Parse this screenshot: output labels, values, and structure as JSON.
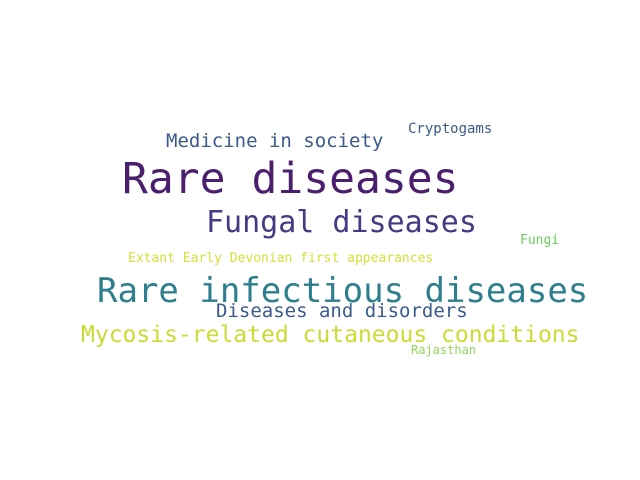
{
  "words": [
    {
      "text": "Cryptogams",
      "color": "#3b5a8c"
    },
    {
      "text": "Medicine in society",
      "color": "#3b5a8c"
    },
    {
      "text": "Rare diseases",
      "color": "#4a1f6e"
    },
    {
      "text": "Fungal diseases",
      "color": "#443b84"
    },
    {
      "text": "Fungi",
      "color": "#6ccc5e"
    },
    {
      "text": "Extant Early Devonian first appearances",
      "color": "#d6e03a"
    },
    {
      "text": "Rare infectious diseases",
      "color": "#2d7f8e"
    },
    {
      "text": "Diseases and disorders",
      "color": "#3b5a8c"
    },
    {
      "text": "Mycosis-related cutaneous conditions",
      "color": "#c9dc34"
    },
    {
      "text": "Rajasthan",
      "color": "#94d55a"
    }
  ]
}
